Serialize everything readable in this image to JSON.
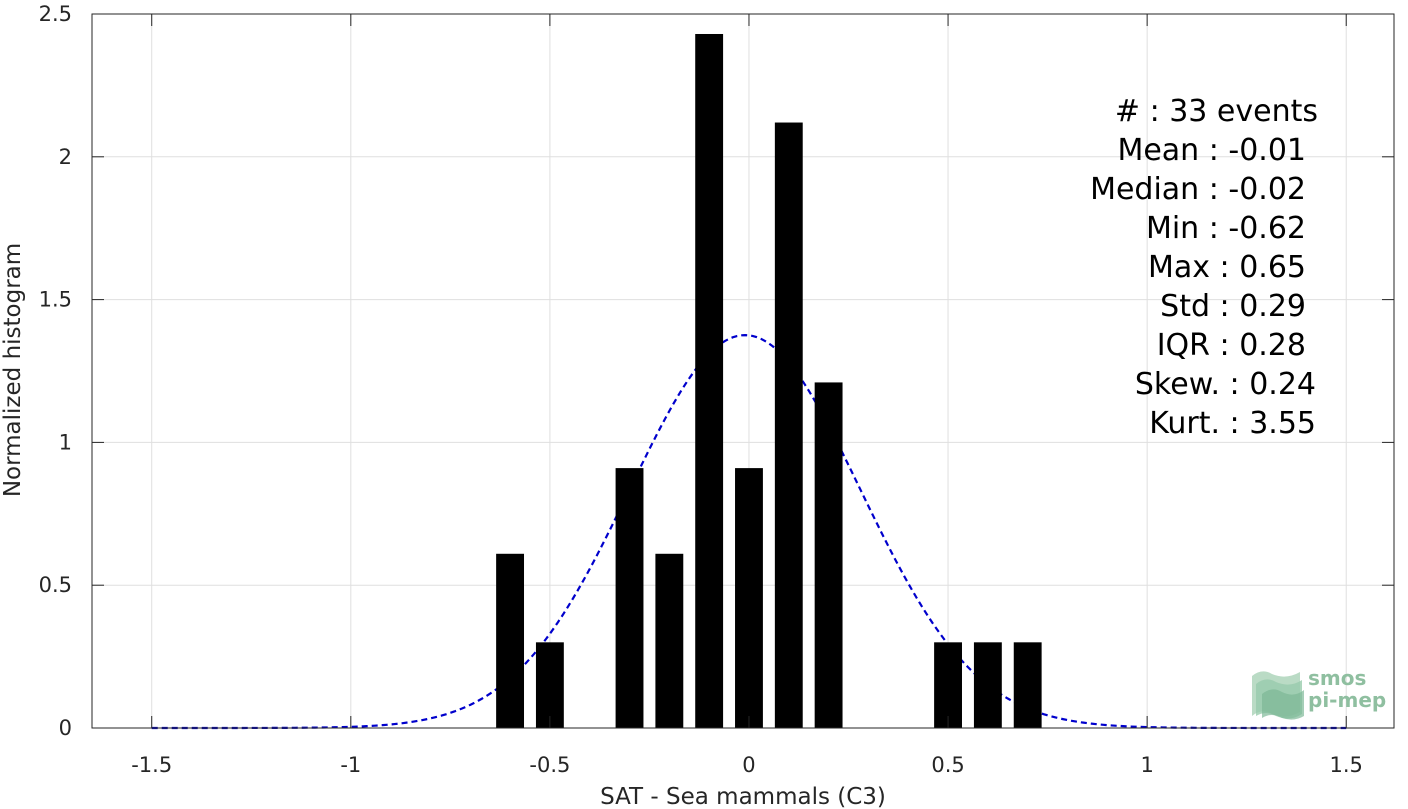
{
  "chart_data": {
    "type": "bar",
    "xlabel": "SAT - Sea mammals (C3)",
    "ylabel": "Normalized histogram",
    "xlim": [
      -1.65,
      1.62
    ],
    "ylim": [
      0,
      2.5
    ],
    "xticks": [
      -1.5,
      -1,
      -0.5,
      0,
      0.5,
      1,
      1.5
    ],
    "xtick_labels": [
      "-1.5",
      "-1",
      "-0.5",
      "0",
      "0.5",
      "1",
      "1.5"
    ],
    "yticks": [
      0,
      0.5,
      1,
      1.5,
      2,
      2.5
    ],
    "ytick_labels": [
      "0",
      "0.5",
      "1",
      "1.5",
      "2",
      "2.5"
    ],
    "grid": true,
    "bar_width": 0.07,
    "bar_color": "#000000",
    "bars": [
      {
        "x": -0.6,
        "value": 0.61
      },
      {
        "x": -0.5,
        "value": 0.3
      },
      {
        "x": -0.3,
        "value": 0.91
      },
      {
        "x": -0.2,
        "value": 0.61
      },
      {
        "x": -0.1,
        "value": 2.43
      },
      {
        "x": 0.0,
        "value": 0.91
      },
      {
        "x": 0.1,
        "value": 2.12
      },
      {
        "x": 0.2,
        "value": 1.21
      },
      {
        "x": 0.5,
        "value": 0.3
      },
      {
        "x": 0.6,
        "value": 0.3
      },
      {
        "x": 0.7,
        "value": 0.3
      }
    ],
    "fit_curve": {
      "style": "dashed",
      "color": "#0000cc",
      "mean": -0.01,
      "std": 0.29,
      "x_range": [
        -1.5,
        1.5
      ]
    },
    "stats": [
      {
        "label": "#  : 33 events"
      },
      {
        "label": "Mean : -0.01"
      },
      {
        "label": "Median : -0.02"
      },
      {
        "label": "Min : -0.62"
      },
      {
        "label": "Max : 0.65"
      },
      {
        "label": "Std : 0.29"
      },
      {
        "label": "IQR : 0.28"
      },
      {
        "label": "Skew. : 0.24"
      },
      {
        "label": "Kurt. : 3.55"
      }
    ]
  },
  "logo": {
    "line1": "smos",
    "line2": "pi-mep",
    "color": "#8fbfa0"
  }
}
